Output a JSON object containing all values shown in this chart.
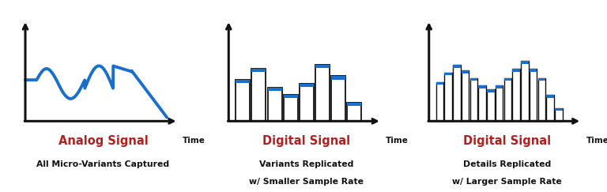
{
  "fig_width": 7.68,
  "fig_height": 2.43,
  "dpi": 100,
  "bg_color": "#ffffff",
  "blue_color": "#1a6fcc",
  "red_color": "#b22020",
  "dark_color": "#111111",
  "panel1_title": "Analog Signal",
  "panel1_sub": "All Micro-Variants Captured",
  "panel2_title": "Digital Signal",
  "panel2_sub1": "Variants Replicated",
  "panel2_sub2": "w/ Smaller Sample Rate",
  "panel3_title": "Digital Signal",
  "panel3_sub1": "Details Replicated",
  "panel3_sub2": "w/ Larger Sample Rate",
  "panel2_bars": [
    0.44,
    0.56,
    0.36,
    0.28,
    0.4,
    0.6,
    0.48,
    0.2
  ],
  "panel3_bars": [
    0.42,
    0.52,
    0.6,
    0.54,
    0.46,
    0.38,
    0.34,
    0.38,
    0.46,
    0.56,
    0.64,
    0.56,
    0.46,
    0.28,
    0.14
  ]
}
